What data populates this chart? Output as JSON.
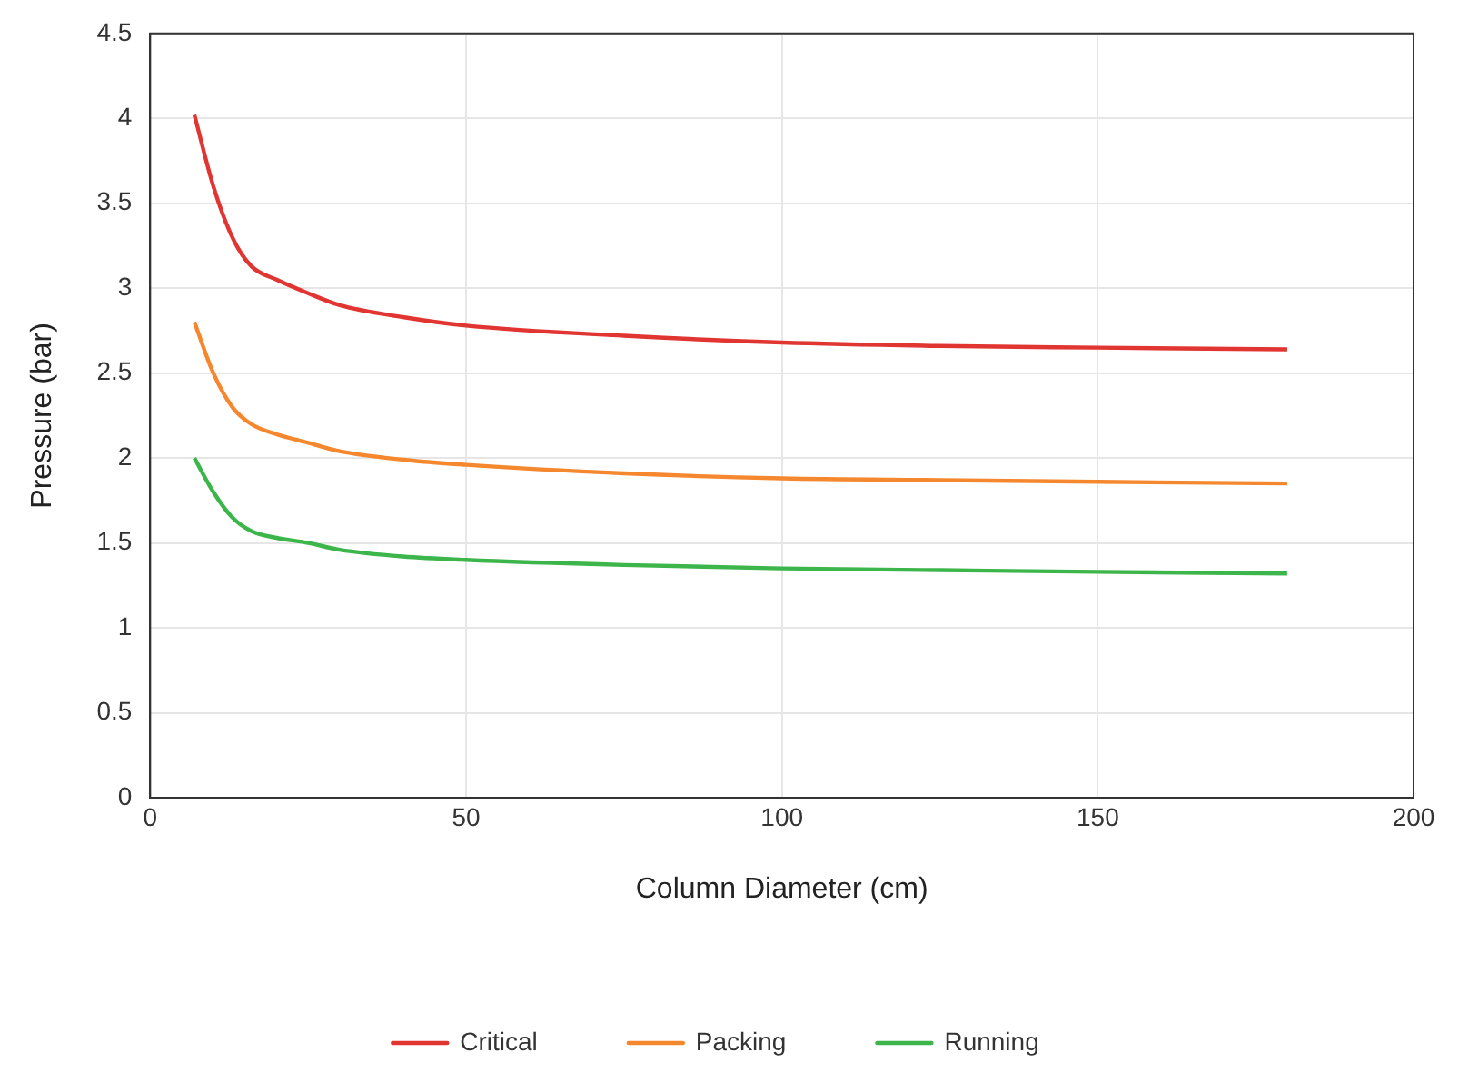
{
  "chart_data": {
    "type": "line",
    "xlabel": "Column Diameter (cm)",
    "ylabel": "Pressure (bar)",
    "x": [
      7,
      10,
      13,
      16,
      20,
      25,
      30,
      40,
      50,
      75,
      100,
      125,
      150,
      180
    ],
    "series": [
      {
        "name": "Critical",
        "color": "#e03531",
        "values": [
          4.02,
          3.6,
          3.3,
          3.13,
          3.05,
          2.97,
          2.9,
          2.83,
          2.78,
          2.72,
          2.68,
          2.66,
          2.65,
          2.64
        ]
      },
      {
        "name": "Packing",
        "color": "#f5872e",
        "values": [
          2.8,
          2.5,
          2.3,
          2.2,
          2.14,
          2.09,
          2.04,
          1.99,
          1.96,
          1.91,
          1.88,
          1.87,
          1.86,
          1.85
        ]
      },
      {
        "name": "Running",
        "color": "#3cb54a",
        "values": [
          2.0,
          1.8,
          1.65,
          1.57,
          1.53,
          1.5,
          1.46,
          1.42,
          1.4,
          1.37,
          1.35,
          1.34,
          1.33,
          1.32
        ]
      }
    ],
    "xlim": [
      0,
      200
    ],
    "xticks": [
      0,
      50,
      100,
      150,
      200
    ],
    "ylim": [
      0,
      4.5
    ],
    "yticks": [
      0,
      0.5,
      1,
      1.5,
      2,
      2.5,
      3,
      3.5,
      4,
      4.5
    ],
    "grid": true,
    "legend": "bottom",
    "marker": "none",
    "line_style": "solid"
  }
}
